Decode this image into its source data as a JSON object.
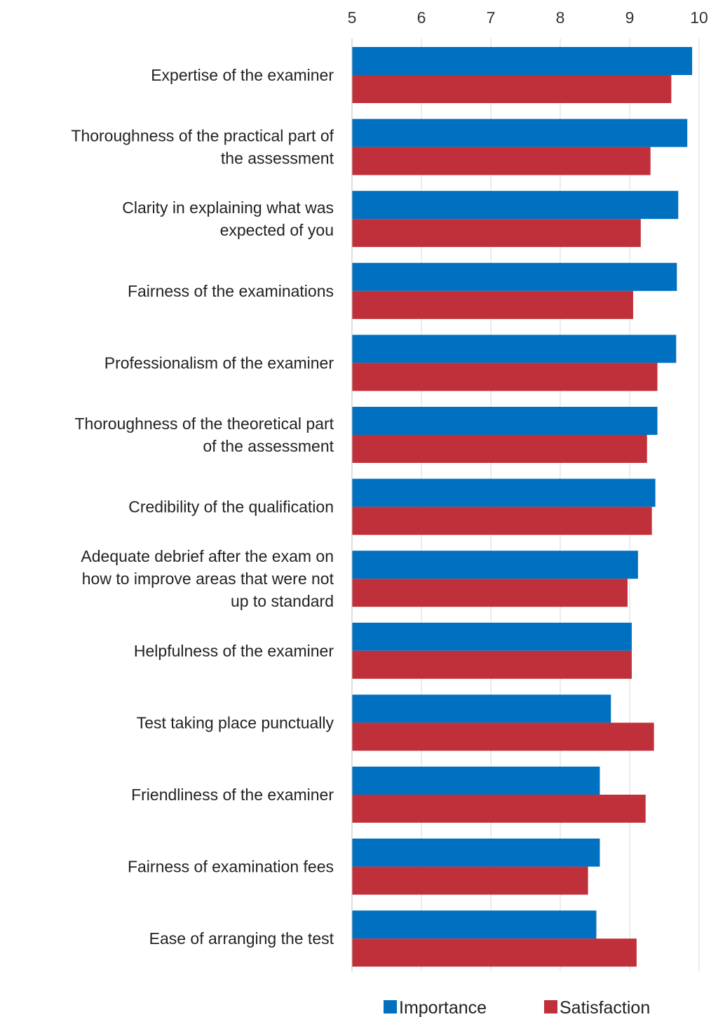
{
  "chart_data": {
    "type": "bar",
    "orientation": "horizontal",
    "categories": [
      "Expertise of the examiner",
      "Thoroughness of the practical part of the assessment",
      "Clarity in explaining what was expected of you",
      "Fairness of the examinations",
      "Professionalism of the examiner",
      "Thoroughness of the theoretical part of the assessment",
      "Credibility of the qualification",
      "Adequate debrief after the exam on how to improve areas that were not up to standard",
      "Helpfulness of the examiner",
      "Test taking place punctually",
      "Friendliness of the examiner",
      "Fairness of examination fees",
      "Ease of arranging the test"
    ],
    "category_lines": [
      [
        "Expertise of the examiner"
      ],
      [
        "Thoroughness of the practical part of",
        "the assessment"
      ],
      [
        "Clarity in explaining what was",
        "expected of you"
      ],
      [
        "Fairness of the examinations"
      ],
      [
        "Professionalism of the examiner"
      ],
      [
        "Thoroughness of the theoretical part",
        "of the assessment"
      ],
      [
        "Credibility of the qualification"
      ],
      [
        "Adequate debrief after the exam on",
        "how to improve areas that were not",
        "up to standard"
      ],
      [
        "Helpfulness of the examiner"
      ],
      [
        "Test taking place punctually"
      ],
      [
        "Friendliness of the examiner"
      ],
      [
        "Fairness of examination fees"
      ],
      [
        "Ease of arranging the test"
      ]
    ],
    "series": [
      {
        "name": "Importance",
        "color": "#0070c0",
        "values": [
          9.9,
          9.83,
          9.7,
          9.68,
          9.67,
          9.4,
          9.37,
          9.12,
          9.03,
          8.73,
          8.57,
          8.57,
          8.52
        ]
      },
      {
        "name": "Satisfaction",
        "color": "#c0303a",
        "values": [
          9.6,
          9.3,
          9.16,
          9.05,
          9.4,
          9.25,
          9.32,
          8.97,
          9.03,
          9.35,
          9.23,
          8.4,
          9.1
        ]
      }
    ],
    "xlim": [
      5,
      10
    ],
    "xticks": [
      "5",
      "6",
      "7",
      "8",
      "9",
      "10"
    ],
    "xaxis_position": "top",
    "grid": true,
    "legend": "bottom",
    "title": "",
    "xlabel": "",
    "ylabel": ""
  }
}
